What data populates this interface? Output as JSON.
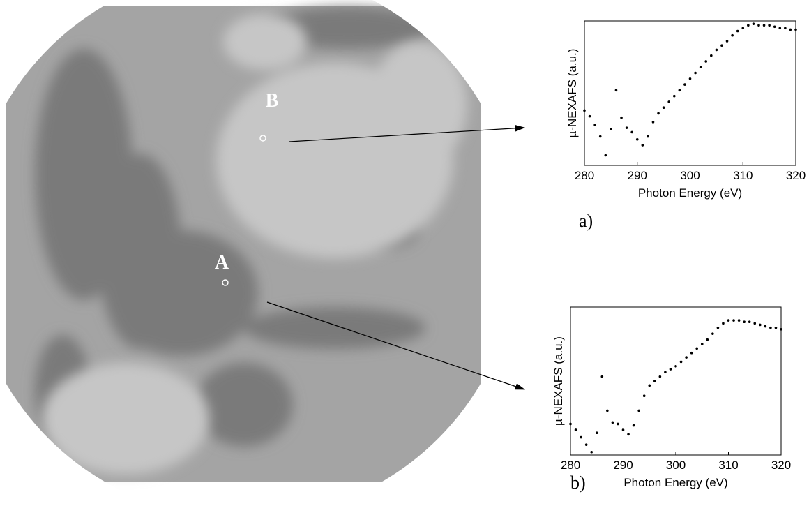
{
  "image_labels": [
    "B",
    "A"
  ],
  "chart_data": [
    {
      "type": "scatter",
      "panel": "a)",
      "x_label": "Photon Energy (eV)",
      "y_label": "µ-NEXAFS (a.u.)",
      "xlim": [
        280,
        320
      ],
      "xticks": [
        280,
        290,
        300,
        310,
        320
      ],
      "ylim": [
        0,
        1
      ],
      "color": "#000000",
      "x": [
        280,
        281,
        282,
        283,
        284,
        285,
        286,
        287,
        288,
        289,
        290,
        291,
        292,
        293,
        294,
        295,
        296,
        297,
        298,
        299,
        300,
        301,
        302,
        303,
        304,
        305,
        306,
        307,
        308,
        309,
        310,
        311,
        312,
        313,
        314,
        315,
        316,
        317,
        318,
        319,
        320
      ],
      "values": [
        0.38,
        0.34,
        0.28,
        0.2,
        0.07,
        0.25,
        0.52,
        0.33,
        0.26,
        0.23,
        0.18,
        0.14,
        0.2,
        0.3,
        0.36,
        0.4,
        0.44,
        0.48,
        0.52,
        0.56,
        0.6,
        0.64,
        0.68,
        0.72,
        0.76,
        0.8,
        0.83,
        0.86,
        0.9,
        0.93,
        0.95,
        0.97,
        0.98,
        0.97,
        0.97,
        0.97,
        0.96,
        0.95,
        0.95,
        0.94,
        0.94
      ]
    },
    {
      "type": "scatter",
      "panel": "b)",
      "x_label": "Photon Energy (eV)",
      "y_label": "µ-NEXAFS (a.u.)",
      "xlim": [
        280,
        320
      ],
      "xticks": [
        280,
        290,
        300,
        310,
        320
      ],
      "ylim": [
        0,
        1
      ],
      "color": "#000000",
      "x": [
        280,
        281,
        282,
        283,
        284,
        285,
        286,
        287,
        288,
        289,
        290,
        291,
        292,
        293,
        294,
        295,
        296,
        297,
        298,
        299,
        300,
        301,
        302,
        303,
        304,
        305,
        306,
        307,
        308,
        309,
        310,
        311,
        312,
        313,
        314,
        315,
        316,
        317,
        318,
        319,
        320
      ],
      "values": [
        0.21,
        0.17,
        0.12,
        0.07,
        0.02,
        0.15,
        0.53,
        0.3,
        0.22,
        0.21,
        0.17,
        0.14,
        0.2,
        0.3,
        0.4,
        0.47,
        0.5,
        0.53,
        0.56,
        0.58,
        0.6,
        0.63,
        0.66,
        0.69,
        0.72,
        0.75,
        0.78,
        0.82,
        0.86,
        0.89,
        0.91,
        0.91,
        0.91,
        0.9,
        0.9,
        0.89,
        0.88,
        0.87,
        0.86,
        0.86,
        0.85
      ]
    }
  ]
}
